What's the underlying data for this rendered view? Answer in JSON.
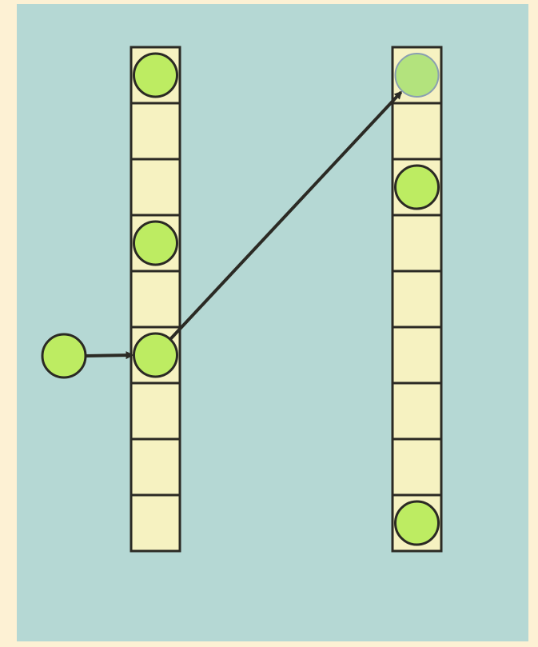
{
  "colors": {
    "page_background": "#fdf1d4",
    "panel_background": "#b5d8d4",
    "cell_fill": "#f6f2c1",
    "cell_stroke": "#2b2a24",
    "ball_fill": "#bdec62",
    "ball_faded_fill": "#b3e37d",
    "ball_stroke": "#2b2a24",
    "arrow": "#2b2a24"
  },
  "diagram": {
    "columns": [
      {
        "name": "left-column",
        "cell_count": 9,
        "occupied": [
          0,
          3,
          5
        ]
      },
      {
        "name": "right-column",
        "cell_count": 9,
        "occupied": [
          0,
          2,
          8
        ],
        "faded": [
          0
        ]
      }
    ],
    "incoming_ball": {
      "target_column": 0,
      "target_cell": 5
    },
    "moves": [
      {
        "from_column": 0,
        "from_cell": 5,
        "to_column": 1,
        "to_cell": 0
      }
    ]
  }
}
